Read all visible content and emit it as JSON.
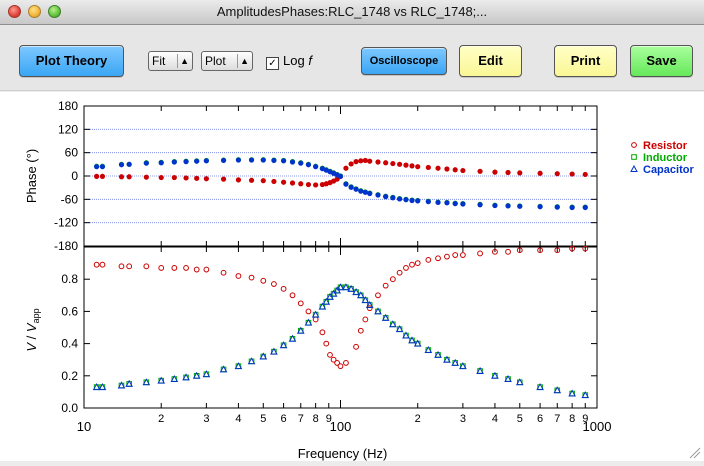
{
  "window": {
    "title": "AmplitudesPhases:RLC_1748 vs RLC_1748;..."
  },
  "toolbar": {
    "plot_theory": "Plot Theory",
    "fit_label": "Fit",
    "plot_label": "Plot",
    "logf_label": "Log",
    "logf_var": "f",
    "logf_checked": true,
    "oscilloscope": "Oscilloscope",
    "edit": "Edit",
    "print": "Print",
    "save": "Save"
  },
  "chart_data": [
    {
      "type": "scatter",
      "ylabel": "Phase (°)",
      "ylim": [
        -180,
        180
      ],
      "yticks": [
        "180",
        "120",
        "60",
        "0",
        "-60",
        "-120",
        "-180"
      ],
      "grid": true,
      "legend_position": "right",
      "series": [
        {
          "name": "Resistor",
          "marker": "circle",
          "color": "#cc0000",
          "x": [
            11.2,
            11.8,
            14,
            15,
            17.5,
            20,
            22.5,
            25,
            27.5,
            30,
            35,
            40,
            45,
            50,
            55,
            60,
            65,
            70,
            75,
            80,
            85,
            88,
            91,
            94,
            97,
            100,
            105,
            110,
            115,
            120,
            125,
            130,
            140,
            150,
            160,
            170,
            180,
            190,
            200,
            220,
            240,
            260,
            280,
            300,
            350,
            400,
            450,
            500,
            600,
            700,
            800,
            900
          ],
          "y": [
            -1,
            -1,
            -2,
            -2,
            -3,
            -4,
            -4,
            -5,
            -6,
            -7,
            -8,
            -10,
            -11,
            -12,
            -14,
            -16,
            -18,
            -20,
            -22,
            -23,
            -22,
            -20,
            -17,
            -13,
            -8,
            -1,
            20,
            31,
            37,
            39,
            40,
            38,
            36,
            34,
            32,
            30,
            28,
            26,
            24,
            22,
            20,
            18,
            16,
            14,
            12,
            10,
            9,
            8,
            7,
            6,
            5,
            4
          ]
        },
        {
          "name": "Inductor",
          "marker": "square",
          "color": "#00aa00",
          "x": [
            11.2,
            11.8,
            14,
            15,
            17.5,
            20,
            22.5,
            25,
            27.5,
            30,
            35,
            40,
            45,
            50,
            55,
            60,
            65,
            70,
            75,
            80,
            85,
            88,
            91,
            94,
            97,
            100,
            105,
            110,
            115,
            120,
            125,
            130,
            140,
            150,
            160,
            170,
            180,
            190,
            200,
            220,
            240,
            260,
            280,
            300,
            350,
            400,
            450,
            500,
            600,
            700,
            800,
            900
          ],
          "y": [
            25,
            25,
            30,
            30,
            34,
            35,
            37,
            38,
            39,
            40,
            41,
            42,
            42,
            42,
            41,
            40,
            37,
            34,
            30,
            25,
            20,
            16,
            12,
            8,
            4,
            0,
            -20,
            -28,
            -33,
            -38,
            -41,
            -44,
            -48,
            -52,
            -55,
            -58,
            -60,
            -62,
            -63,
            -65,
            -67,
            -68,
            -70,
            -71,
            -73,
            -75,
            -76,
            -77,
            -78,
            -79,
            -80,
            -80
          ]
        },
        {
          "name": "Capacitor",
          "marker": "triangle",
          "color": "#0033cc",
          "x": [
            11.2,
            11.8,
            14,
            15,
            17.5,
            20,
            22.5,
            25,
            27.5,
            30,
            35,
            40,
            45,
            50,
            55,
            60,
            65,
            70,
            75,
            80,
            85,
            88,
            91,
            94,
            97,
            100,
            105,
            110,
            115,
            120,
            125,
            130,
            140,
            150,
            160,
            170,
            180,
            190,
            200,
            220,
            240,
            260,
            280,
            300,
            350,
            400,
            450,
            500,
            600,
            700,
            800,
            900
          ],
          "y": [
            24,
            24,
            29,
            30,
            33,
            34,
            36,
            37,
            38,
            39,
            40,
            41,
            41,
            41,
            40,
            39,
            36,
            33,
            29,
            24,
            19,
            15,
            11,
            7,
            3,
            -1,
            -21,
            -29,
            -34,
            -39,
            -42,
            -45,
            -49,
            -53,
            -56,
            -59,
            -61,
            -63,
            -64,
            -66,
            -68,
            -69,
            -71,
            -72,
            -74,
            -76,
            -77,
            -78,
            -79,
            -80,
            -81,
            -81
          ]
        }
      ]
    },
    {
      "type": "scatter",
      "ylabel_main": "V",
      "ylabel_den": "V",
      "ylabel_den_sub": "app",
      "xlabel": "Frequency (Hz)",
      "xscale": "log",
      "xlim": [
        10,
        1000
      ],
      "xticks": [
        {
          "v": 10,
          "label": "10",
          "major": true
        },
        {
          "v": 20,
          "label": "2"
        },
        {
          "v": 30,
          "label": "3"
        },
        {
          "v": 40,
          "label": "4"
        },
        {
          "v": 50,
          "label": "5"
        },
        {
          "v": 60,
          "label": "6"
        },
        {
          "v": 70,
          "label": "7"
        },
        {
          "v": 80,
          "label": "8"
        },
        {
          "v": 90,
          "label": "9"
        },
        {
          "v": 100,
          "label": "100",
          "major": true
        },
        {
          "v": 200,
          "label": "2"
        },
        {
          "v": 300,
          "label": "3"
        },
        {
          "v": 400,
          "label": "4"
        },
        {
          "v": 500,
          "label": "5"
        },
        {
          "v": 600,
          "label": "6"
        },
        {
          "v": 700,
          "label": "7"
        },
        {
          "v": 800,
          "label": "8"
        },
        {
          "v": 900,
          "label": "9"
        },
        {
          "v": 1000,
          "label": "1000",
          "major": true
        }
      ],
      "ylim": [
        0,
        1.0
      ],
      "yticks": [
        "0.8",
        "0.6",
        "0.4",
        "0.2",
        "0.0"
      ],
      "series": [
        {
          "name": "Resistor",
          "marker": "circle",
          "color": "#cc0000",
          "x": [
            11.2,
            11.8,
            14,
            15,
            17.5,
            20,
            22.5,
            25,
            27.5,
            30,
            35,
            40,
            45,
            50,
            55,
            60,
            65,
            70,
            75,
            80,
            85,
            88,
            91,
            94,
            97,
            100,
            105,
            115,
            120,
            125,
            130,
            140,
            150,
            160,
            170,
            180,
            190,
            200,
            220,
            240,
            260,
            280,
            300,
            350,
            400,
            450,
            500,
            600,
            700,
            800,
            900
          ],
          "y": [
            0.89,
            0.89,
            0.88,
            0.88,
            0.88,
            0.87,
            0.87,
            0.87,
            0.86,
            0.86,
            0.84,
            0.82,
            0.81,
            0.79,
            0.77,
            0.74,
            0.7,
            0.65,
            0.6,
            0.55,
            0.47,
            0.4,
            0.33,
            0.3,
            0.28,
            0.26,
            0.28,
            0.38,
            0.48,
            0.55,
            0.62,
            0.7,
            0.76,
            0.8,
            0.84,
            0.87,
            0.89,
            0.9,
            0.92,
            0.93,
            0.94,
            0.95,
            0.95,
            0.96,
            0.97,
            0.97,
            0.98,
            0.98,
            0.98,
            0.99,
            0.99
          ]
        },
        {
          "name": "Inductor",
          "marker": "square",
          "color": "#00aa00",
          "x": [
            11.2,
            11.8,
            14,
            15,
            17.5,
            20,
            22.5,
            25,
            27.5,
            30,
            35,
            40,
            45,
            50,
            55,
            60,
            65,
            70,
            75,
            80,
            85,
            88,
            91,
            94,
            97,
            100,
            105,
            110,
            115,
            120,
            125,
            130,
            140,
            150,
            160,
            170,
            180,
            190,
            200,
            220,
            240,
            260,
            280,
            300,
            350,
            400,
            450,
            500,
            600,
            700,
            800,
            900
          ],
          "y": [
            0.13,
            0.13,
            0.14,
            0.15,
            0.16,
            0.17,
            0.18,
            0.19,
            0.2,
            0.21,
            0.24,
            0.26,
            0.29,
            0.32,
            0.35,
            0.39,
            0.43,
            0.48,
            0.53,
            0.58,
            0.63,
            0.66,
            0.69,
            0.71,
            0.73,
            0.75,
            0.75,
            0.74,
            0.72,
            0.7,
            0.67,
            0.64,
            0.6,
            0.56,
            0.52,
            0.49,
            0.45,
            0.42,
            0.4,
            0.36,
            0.33,
            0.3,
            0.28,
            0.26,
            0.23,
            0.2,
            0.18,
            0.16,
            0.13,
            0.11,
            0.09,
            0.08
          ]
        },
        {
          "name": "Capacitor",
          "marker": "triangle",
          "color": "#0033cc",
          "x": [
            11.2,
            11.8,
            14,
            15,
            17.5,
            20,
            22.5,
            25,
            27.5,
            30,
            35,
            40,
            45,
            50,
            55,
            60,
            65,
            70,
            75,
            80,
            85,
            88,
            91,
            94,
            97,
            100,
            105,
            110,
            115,
            120,
            125,
            130,
            140,
            150,
            160,
            170,
            180,
            190,
            200,
            220,
            240,
            260,
            280,
            300,
            350,
            400,
            450,
            500,
            600,
            700,
            800,
            900
          ],
          "y": [
            0.13,
            0.13,
            0.14,
            0.15,
            0.16,
            0.17,
            0.18,
            0.19,
            0.2,
            0.21,
            0.24,
            0.26,
            0.29,
            0.32,
            0.35,
            0.39,
            0.43,
            0.48,
            0.53,
            0.58,
            0.63,
            0.66,
            0.69,
            0.71,
            0.73,
            0.75,
            0.75,
            0.74,
            0.72,
            0.7,
            0.67,
            0.64,
            0.6,
            0.56,
            0.52,
            0.49,
            0.45,
            0.42,
            0.4,
            0.36,
            0.33,
            0.3,
            0.28,
            0.26,
            0.23,
            0.2,
            0.18,
            0.16,
            0.13,
            0.11,
            0.09,
            0.08
          ]
        }
      ]
    }
  ]
}
